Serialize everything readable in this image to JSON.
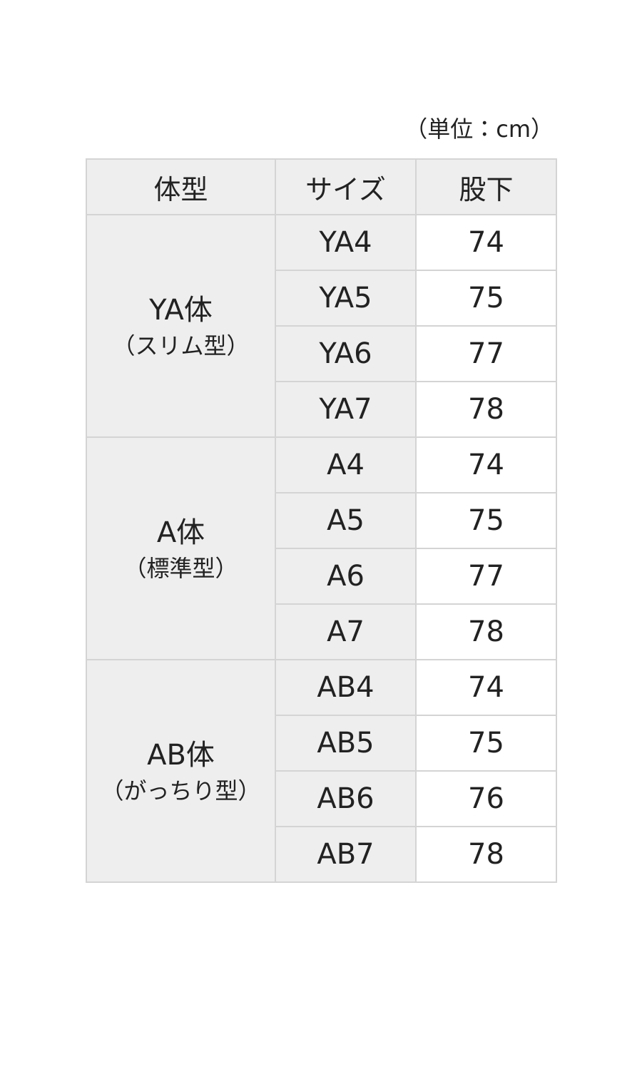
{
  "unit": "（単位：cm）",
  "table": {
    "header": [
      "体型",
      "サイズ",
      "股下"
    ],
    "groups": [
      {
        "name": "YA体",
        "note": "（スリム型）",
        "rows": [
          {
            "size": "YA4",
            "inseam": 74
          },
          {
            "size": "YA5",
            "inseam": 75
          },
          {
            "size": "YA6",
            "inseam": 77
          },
          {
            "size": "YA7",
            "inseam": 78
          }
        ]
      },
      {
        "name": "A体",
        "note": "（標準型）",
        "rows": [
          {
            "size": "A4",
            "inseam": 74
          },
          {
            "size": "A5",
            "inseam": 75
          },
          {
            "size": "A6",
            "inseam": 77
          },
          {
            "size": "A7",
            "inseam": 78
          }
        ]
      },
      {
        "name": "AB体",
        "note": "（がっちり型）",
        "rows": [
          {
            "size": "AB4",
            "inseam": 74
          },
          {
            "size": "AB5",
            "inseam": 75
          },
          {
            "size": "AB6",
            "inseam": 76
          },
          {
            "size": "AB7",
            "inseam": 78
          }
        ]
      }
    ]
  }
}
